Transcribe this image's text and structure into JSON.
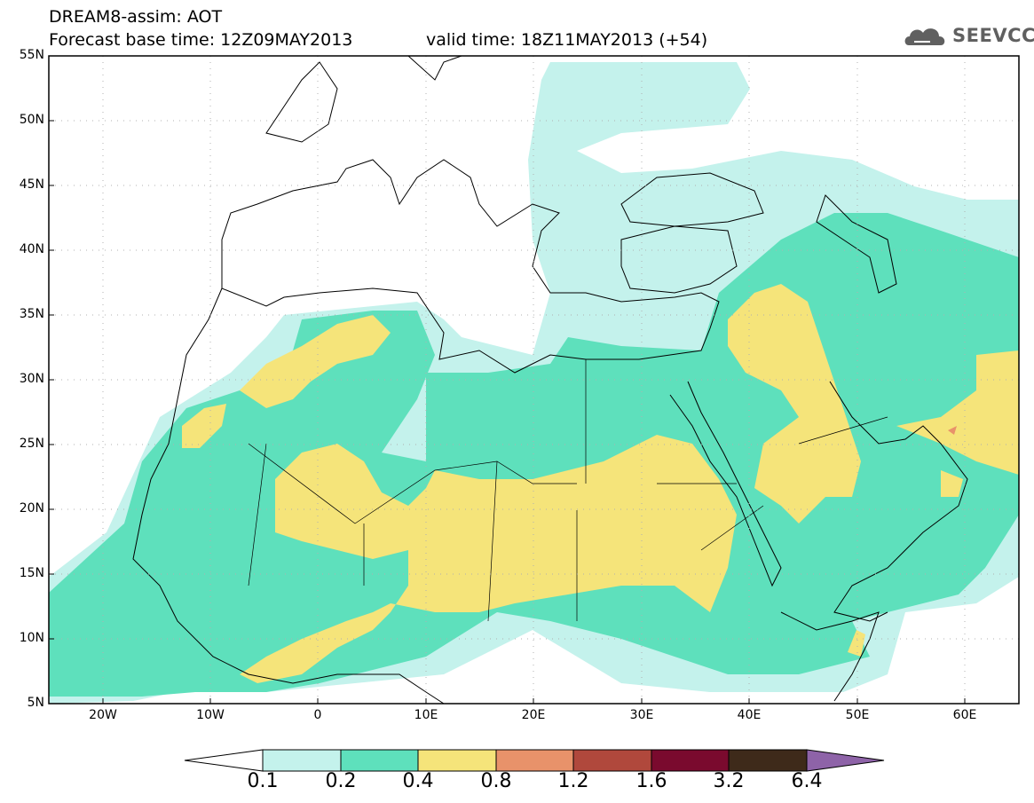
{
  "header": {
    "line1": "DREAM8-assim: AOT",
    "base_time": "Forecast base time: 12Z09MAY2013",
    "valid_time": "valid time: 18Z11MAY2013 (+54)"
  },
  "logo": {
    "text": "SEEVCCC",
    "icon": "cloud-logo-icon"
  },
  "map": {
    "lon_range": [
      -25,
      65
    ],
    "lat_range": [
      5,
      55
    ],
    "lat_labels": [
      "55N",
      "50N",
      "45N",
      "40N",
      "35N",
      "30N",
      "25N",
      "20N",
      "15N",
      "10N",
      "5N"
    ],
    "lon_labels": [
      "20W",
      "10W",
      "0",
      "10E",
      "20E",
      "30E",
      "40E",
      "50E",
      "60E"
    ],
    "grid": "dotted",
    "colors": {
      "c01": "#c4f2ec",
      "c02": "#5ee0bc",
      "c04": "#f5e47a",
      "c08": "#e8926a",
      "c12": "#b0483c",
      "c16": "#7a0a2e",
      "c32": "#3e2a1a",
      "c64": "#8e63a8"
    }
  },
  "colorbar": {
    "ticks": [
      "0.1",
      "0.2",
      "0.4",
      "0.8",
      "1.2",
      "1.6",
      "3.2",
      "6.4"
    ],
    "colors": [
      "#ffffff",
      "#c4f2ec",
      "#5ee0bc",
      "#f5e47a",
      "#e8926a",
      "#b0483c",
      "#7a0a2e",
      "#3e2a1a",
      "#8e63a8"
    ]
  }
}
